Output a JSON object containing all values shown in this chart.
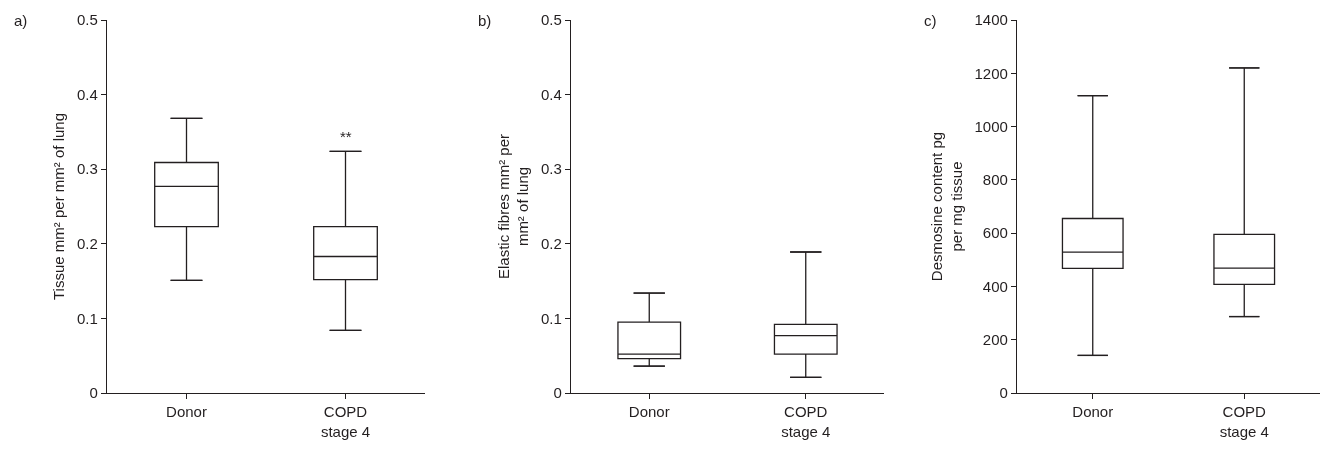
{
  "chart_data": [
    {
      "type": "box",
      "title": "a)",
      "ylabel": "Tissue mm² per mm² of lung",
      "categories": [
        "Donor",
        "COPD\nstage 4"
      ],
      "ylim": [
        0,
        0.5
      ],
      "yticks": [
        0,
        0.1,
        0.2,
        0.3,
        0.4,
        0.5
      ],
      "boxes": [
        {
          "low": 0.151,
          "q1": 0.223,
          "median": 0.277,
          "q3": 0.309,
          "high": 0.368
        },
        {
          "low": 0.084,
          "q1": 0.152,
          "median": 0.183,
          "q3": 0.223,
          "high": 0.324
        }
      ],
      "annotations": [
        "**"
      ]
    },
    {
      "type": "box",
      "title": "b)",
      "ylabel": "Elastic fibres mm² per\nmm² of lung",
      "categories": [
        "Donor",
        "COPD\nstage 4"
      ],
      "ylim": [
        0,
        0.5
      ],
      "yticks": [
        0,
        0.1,
        0.2,
        0.3,
        0.4,
        0.5
      ],
      "boxes": [
        {
          "low": 0.036,
          "q1": 0.046,
          "median": 0.052,
          "q3": 0.095,
          "high": 0.134
        },
        {
          "low": 0.021,
          "q1": 0.052,
          "median": 0.077,
          "q3": 0.092,
          "high": 0.189
        }
      ]
    },
    {
      "type": "box",
      "title": "c)",
      "ylabel": "Desmosine content pg\nper mg tissue",
      "categories": [
        "Donor",
        "COPD\nstage 4"
      ],
      "ylim": [
        0,
        1400
      ],
      "yticks": [
        0,
        200,
        400,
        600,
        800,
        1000,
        1200,
        1400
      ],
      "boxes": [
        {
          "low": 141,
          "q1": 468,
          "median": 529,
          "q3": 655,
          "high": 1116
        },
        {
          "low": 287,
          "q1": 408,
          "median": 469,
          "q3": 595,
          "high": 1220
        }
      ]
    }
  ]
}
